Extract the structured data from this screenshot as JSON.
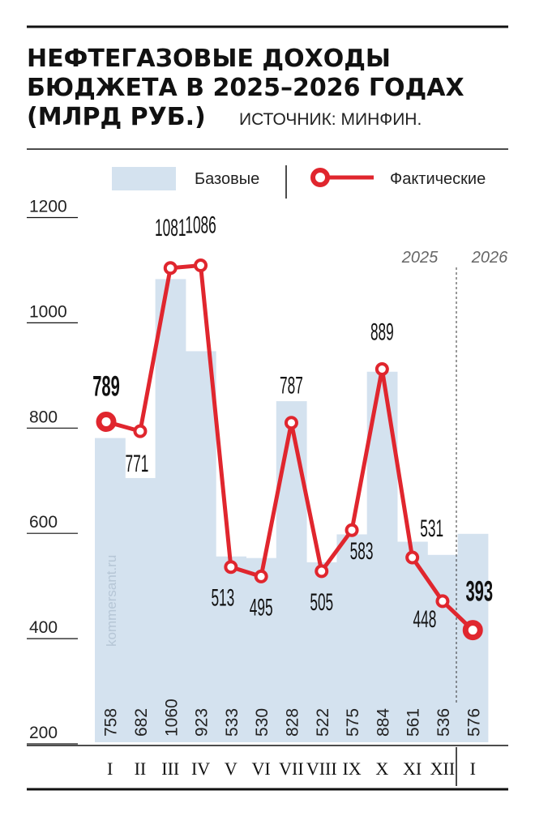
{
  "title_lines": [
    "НЕФТЕГАЗОВЫЕ ДОХОДЫ",
    "БЮДЖЕТА В 2025–2026 ГОДАХ",
    "(МЛРД РУБ.)"
  ],
  "source": "ИСТОЧНИК: МИНФИН.",
  "watermark": "kommersant.ru",
  "legend": {
    "base": "Базовые",
    "actual": "Фактические"
  },
  "years": [
    "2025",
    "2026"
  ],
  "colors": {
    "base": "#d4e2ef",
    "actual": "#e0262e",
    "text": "#111111"
  },
  "chart_data": {
    "type": "bar",
    "categories": [
      "I",
      "II",
      "III",
      "IV",
      "V",
      "VI",
      "VII",
      "VIII",
      "IX",
      "X",
      "XI",
      "XII",
      "I"
    ],
    "ylim": [
      200,
      1200
    ],
    "yticks": [
      200,
      400,
      600,
      800,
      1000,
      1200
    ],
    "series": [
      {
        "name": "Базовые",
        "type": "bar",
        "values": [
          758,
          682,
          1060,
          923,
          533,
          530,
          828,
          522,
          575,
          884,
          561,
          536,
          576
        ]
      },
      {
        "name": "Фактические",
        "type": "line",
        "values": [
          789,
          771,
          1081,
          1086,
          513,
          495,
          787,
          505,
          583,
          889,
          531,
          448,
          393
        ]
      }
    ],
    "grid": false,
    "legend_position": "top"
  }
}
